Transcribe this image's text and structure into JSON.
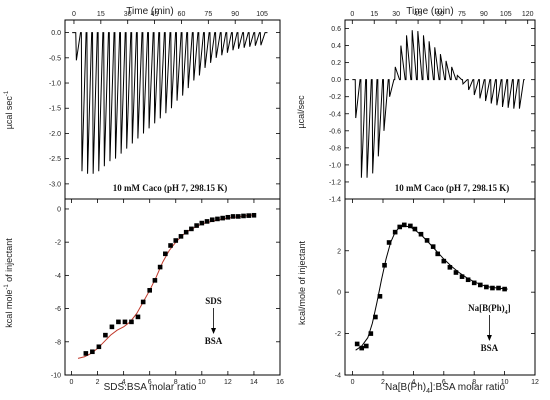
{
  "chart_data": [
    {
      "type": "line",
      "panel": "left-top",
      "title": "",
      "xlabel": "Time (min)",
      "ylabel": "µcal sec",
      "ylabel_sup": "-1",
      "xlim": [
        -5,
        115
      ],
      "ylim": [
        -3.3,
        0.25
      ],
      "xticks": [
        "0",
        "15",
        "30",
        "45",
        "60",
        "75",
        "90",
        "105"
      ],
      "xtick_values": [
        0,
        15,
        30,
        45,
        60,
        75,
        90,
        105
      ],
      "yticks": [
        "0.0",
        "-0.5",
        "-1.0",
        "-1.5",
        "-2.0",
        "-2.5",
        "-3.0"
      ],
      "ytick_values": [
        0,
        -0.5,
        -1,
        -1.5,
        -2,
        -2.5,
        -3
      ],
      "annotation": "10 mM Caco (pH 7, 298.15 K)",
      "baseline": 0,
      "injections": {
        "count": 34,
        "start_time": 1,
        "end_time": 104,
        "peak_values": [
          -0.55,
          -2.75,
          -2.8,
          -2.8,
          -2.75,
          -2.65,
          -2.55,
          -2.5,
          -2.4,
          -2.3,
          -2.2,
          -2.1,
          -2.0,
          -1.9,
          -1.8,
          -1.7,
          -1.6,
          -1.5,
          -1.35,
          -1.25,
          -1.1,
          -0.95,
          -0.85,
          -0.7,
          -0.6,
          -0.5,
          -0.45,
          -0.4,
          -0.35,
          -0.32,
          -0.3,
          -0.28,
          -0.26,
          -0.25
        ]
      },
      "grid": false
    },
    {
      "type": "scatter",
      "panel": "left-bottom",
      "title": "",
      "xlabel": "SDS:BSA molar ratio",
      "ylabel": "kcal mole",
      "ylabel_sup": "-1",
      "ylabel_suffix": " of injectant",
      "xlim": [
        -0.5,
        16
      ],
      "ylim": [
        -10,
        0.6
      ],
      "xticks": [
        "0",
        "2",
        "4",
        "6",
        "8",
        "10",
        "12",
        "14",
        "16"
      ],
      "xtick_values": [
        0,
        2,
        4,
        6,
        8,
        10,
        12,
        14,
        16
      ],
      "yticks": [
        "0",
        "-2",
        "-4",
        "-6",
        "-8",
        "-10"
      ],
      "ytick_values": [
        0,
        -2,
        -4,
        -6,
        -8,
        -10
      ],
      "x": [
        1.1,
        1.6,
        2.1,
        2.6,
        3.1,
        3.6,
        4.1,
        4.6,
        5.1,
        5.5,
        6.0,
        6.4,
        6.8,
        7.2,
        7.6,
        8.0,
        8.4,
        8.8,
        9.2,
        9.6,
        10.0,
        10.4,
        10.8,
        11.2,
        11.6,
        12.0,
        12.4,
        12.8,
        13.2,
        13.6,
        14.0
      ],
      "y": [
        -8.7,
        -8.6,
        -8.3,
        -7.6,
        -7.1,
        -6.8,
        -6.8,
        -6.8,
        -6.5,
        -5.6,
        -4.9,
        -4.3,
        -3.5,
        -2.7,
        -2.2,
        -1.9,
        -1.65,
        -1.4,
        -1.2,
        -1.0,
        -0.85,
        -0.75,
        -0.65,
        -0.6,
        -0.55,
        -0.5,
        -0.45,
        -0.45,
        -0.42,
        -0.4,
        -0.38
      ],
      "fit": {
        "x": [
          0.5,
          1.0,
          1.5,
          2.0,
          2.5,
          3.0,
          3.5,
          4.0,
          4.5,
          5.0,
          5.5,
          6.0,
          6.5,
          7.0,
          7.5,
          8.0,
          8.5,
          9.0,
          9.5,
          10.0,
          11.0,
          12.0,
          13.0,
          14.0
        ],
        "y": [
          -9.0,
          -8.9,
          -8.7,
          -8.4,
          -8.0,
          -7.6,
          -7.3,
          -7.1,
          -6.8,
          -6.3,
          -5.6,
          -4.9,
          -4.1,
          -3.2,
          -2.5,
          -2.0,
          -1.6,
          -1.3,
          -1.1,
          -0.9,
          -0.7,
          -0.55,
          -0.45,
          -0.35
        ]
      },
      "annotation_top": "SDS",
      "annotation_bottom": "BSA",
      "annotation_x": 10.9,
      "grid": false
    },
    {
      "type": "line",
      "panel": "right-top",
      "title": "",
      "xlabel": "Time (min)",
      "ylabel": "µcal/sec",
      "xlim": [
        -5,
        125
      ],
      "ylim": [
        -1.4,
        0.7
      ],
      "xticks": [
        "0",
        "15",
        "30",
        "45",
        "60",
        "75",
        "90",
        "105",
        "120"
      ],
      "xtick_values": [
        0,
        15,
        30,
        45,
        60,
        75,
        90,
        105,
        120
      ],
      "yticks": [
        "0.6",
        "0.4",
        "0.2",
        "0.0",
        "-0.2",
        "-0.4",
        "-0.6",
        "-0.8",
        "-1.0",
        "-1.2",
        "-1.4"
      ],
      "ytick_values": [
        0.6,
        0.4,
        0.2,
        0,
        -0.2,
        -0.4,
        -0.6,
        -0.8,
        -1.0,
        -1.2,
        -1.4
      ],
      "annotation": "10 mM Caco (pH 7, 298.15 K)",
      "baseline": 0,
      "injections": {
        "count": 30,
        "start_time": 2,
        "end_time": 114,
        "peak_values": [
          -0.45,
          -1.15,
          -1.15,
          -1.1,
          -0.9,
          -0.6,
          -0.2,
          0.15,
          0.4,
          0.52,
          0.58,
          0.57,
          0.52,
          0.45,
          0.38,
          0.3,
          0.22,
          0.15,
          0.05,
          -0.05,
          -0.12,
          -0.18,
          -0.22,
          -0.25,
          -0.28,
          -0.3,
          -0.32,
          -0.33,
          -0.34,
          -0.34
        ]
      },
      "grid": false
    },
    {
      "type": "scatter",
      "panel": "right-bottom",
      "title": "",
      "xlabel": "Na[B(Ph)",
      "xlabel_sub": "4",
      "xlabel_suffix": "]:BSA molar ratio",
      "ylabel": "kcal/mole of injectant",
      "xlim": [
        -0.5,
        12
      ],
      "ylim": [
        -4,
        4.5
      ],
      "xticks": [
        "0",
        "2",
        "4",
        "6",
        "8",
        "10",
        "12"
      ],
      "xtick_values": [
        0,
        2,
        4,
        6,
        8,
        10,
        12
      ],
      "yticks": [
        "-4",
        "-2",
        "0",
        "2"
      ],
      "ytick_values": [
        -4,
        -2,
        0,
        2
      ],
      "x": [
        0.3,
        0.6,
        0.9,
        1.2,
        1.5,
        1.8,
        2.1,
        2.4,
        2.8,
        3.1,
        3.4,
        3.8,
        4.1,
        4.5,
        4.9,
        5.3,
        5.6,
        6.0,
        6.4,
        6.8,
        7.2,
        7.6,
        8.0,
        8.4,
        8.8,
        9.2,
        9.6,
        10.0
      ],
      "y": [
        -2.5,
        -2.7,
        -2.6,
        -2.0,
        -1.2,
        -0.2,
        1.3,
        2.4,
        2.9,
        3.15,
        3.25,
        3.2,
        3.05,
        2.8,
        2.5,
        2.2,
        1.85,
        1.5,
        1.2,
        0.95,
        0.75,
        0.6,
        0.45,
        0.35,
        0.25,
        0.2,
        0.2,
        0.15
      ],
      "fit": {
        "x": [
          0.2,
          0.6,
          1.0,
          1.3,
          1.6,
          1.9,
          2.2,
          2.5,
          2.8,
          3.1,
          3.4,
          3.8,
          4.2,
          4.6,
          5.0,
          5.5,
          6.0,
          6.5,
          7.0,
          7.5,
          8.0,
          8.5,
          9.0,
          9.5,
          10.2
        ],
        "y": [
          -2.8,
          -2.6,
          -2.2,
          -1.5,
          -0.5,
          0.6,
          1.6,
          2.4,
          2.9,
          3.15,
          3.2,
          3.15,
          2.95,
          2.7,
          2.4,
          2.0,
          1.6,
          1.25,
          0.95,
          0.7,
          0.5,
          0.35,
          0.25,
          0.2,
          0.15
        ]
      },
      "annotation_top": "Na[B(Ph)",
      "annotation_top_sub": "4",
      "annotation_top_suffix": "]",
      "annotation_bottom": "BSA",
      "annotation_x": 9.0,
      "grid": false
    }
  ]
}
